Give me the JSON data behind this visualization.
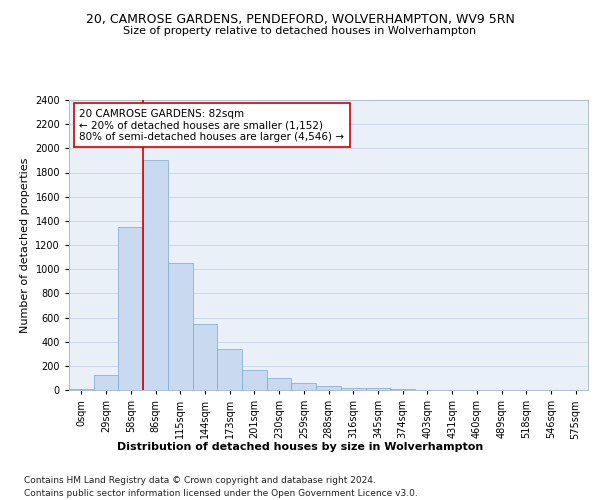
{
  "title_line1": "20, CAMROSE GARDENS, PENDEFORD, WOLVERHAMPTON, WV9 5RN",
  "title_line2": "Size of property relative to detached houses in Wolverhampton",
  "xlabel": "Distribution of detached houses by size in Wolverhampton",
  "ylabel": "Number of detached properties",
  "bar_values": [
    10,
    125,
    1350,
    1900,
    1050,
    550,
    340,
    165,
    100,
    55,
    30,
    20,
    15,
    5,
    3,
    2,
    1,
    1,
    0,
    1
  ],
  "bar_labels": [
    "0sqm",
    "29sqm",
    "58sqm",
    "86sqm",
    "115sqm",
    "144sqm",
    "173sqm",
    "201sqm",
    "230sqm",
    "259sqm",
    "288sqm",
    "316sqm",
    "345sqm",
    "374sqm",
    "403sqm",
    "431sqm",
    "460sqm",
    "489sqm",
    "518sqm",
    "546sqm",
    "575sqm"
  ],
  "bar_color": "#c9d9f0",
  "bar_edge_color": "#7aaad0",
  "bar_edge_width": 0.5,
  "red_line_bar_index": 3,
  "property_line_color": "#cc0000",
  "annotation_text": "20 CAMROSE GARDENS: 82sqm\n← 20% of detached houses are smaller (1,152)\n80% of semi-detached houses are larger (4,546) →",
  "annotation_box_color": "#ffffff",
  "annotation_box_edge_color": "#cc0000",
  "ylim": [
    0,
    2400
  ],
  "yticks": [
    0,
    200,
    400,
    600,
    800,
    1000,
    1200,
    1400,
    1600,
    1800,
    2000,
    2200,
    2400
  ],
  "grid_color": "#c8d4e8",
  "background_color": "#eaf0f8",
  "footer_line1": "Contains HM Land Registry data © Crown copyright and database right 2024.",
  "footer_line2": "Contains public sector information licensed under the Open Government Licence v3.0.",
  "title_fontsize": 9,
  "subtitle_fontsize": 8,
  "axis_label_fontsize": 8,
  "tick_fontsize": 7,
  "footer_fontsize": 6.5,
  "annotation_fontsize": 7.5
}
